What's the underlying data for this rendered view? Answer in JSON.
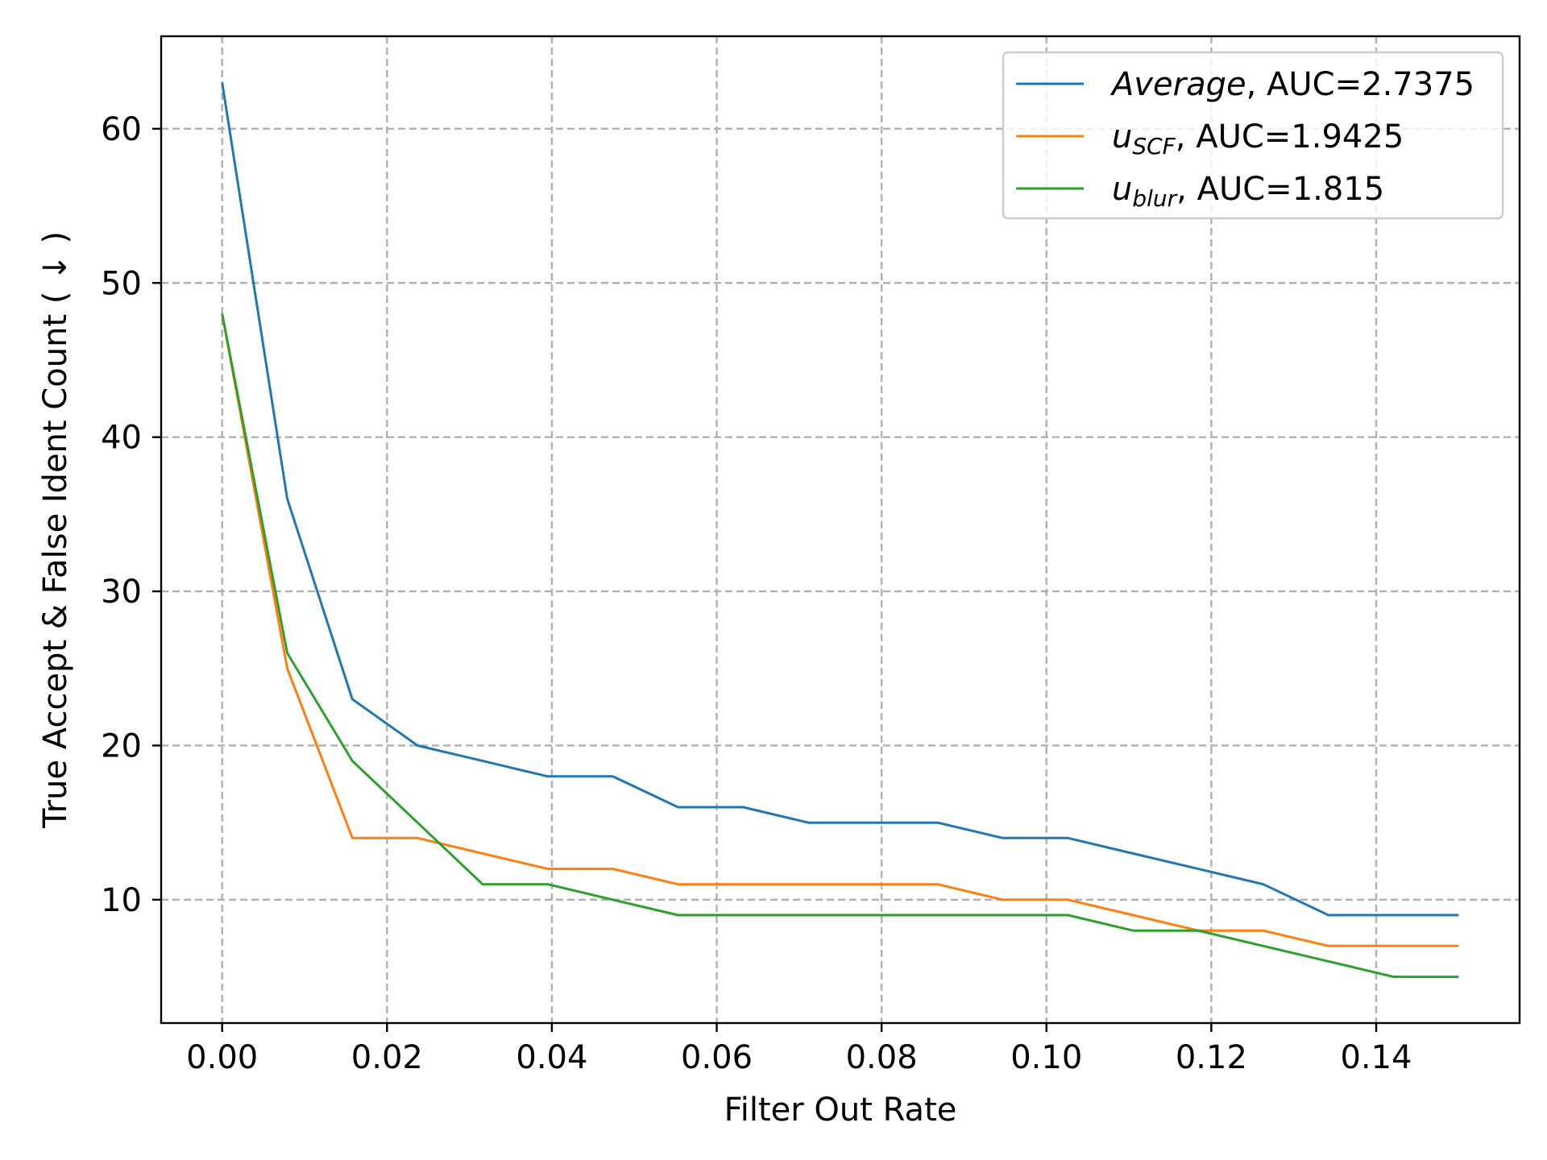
{
  "chart_data": {
    "type": "line",
    "title": "",
    "xlabel": "Filter Out Rate",
    "ylabel": "True Accept & False Ident Count ( ↓ )",
    "xlim": [
      -0.0074,
      0.1574
    ],
    "ylim": [
      2.0,
      66.0
    ],
    "grid": true,
    "legend_position": "top-right",
    "x_ticks": [
      {
        "value": 0.0,
        "label": "0.00"
      },
      {
        "value": 0.02,
        "label": "0.02"
      },
      {
        "value": 0.04,
        "label": "0.04"
      },
      {
        "value": 0.06,
        "label": "0.06"
      },
      {
        "value": 0.08,
        "label": "0.08"
      },
      {
        "value": 0.1,
        "label": "0.10"
      },
      {
        "value": 0.12,
        "label": "0.12"
      },
      {
        "value": 0.14,
        "label": "0.14"
      }
    ],
    "y_ticks": [
      {
        "value": 10,
        "label": "10"
      },
      {
        "value": 20,
        "label": "20"
      },
      {
        "value": 30,
        "label": "30"
      },
      {
        "value": 40,
        "label": "40"
      },
      {
        "value": 50,
        "label": "50"
      },
      {
        "value": 60,
        "label": "60"
      }
    ],
    "x": [
      0.0,
      0.0079,
      0.0158,
      0.0237,
      0.0316,
      0.0395,
      0.0474,
      0.0553,
      0.0632,
      0.0711,
      0.0789,
      0.0868,
      0.0947,
      0.1026,
      0.1105,
      0.1184,
      0.1263,
      0.1342,
      0.1421,
      0.15
    ],
    "series": [
      {
        "name": "Average",
        "legend_suffix": ", AUC=2.7375",
        "color": "#1f77b4",
        "values": [
          63,
          36,
          23,
          20,
          19,
          18,
          18,
          16,
          16,
          15,
          15,
          15,
          14,
          14,
          13,
          12,
          11,
          9,
          9,
          9
        ]
      },
      {
        "name": "u",
        "name_sub": "SCF",
        "legend_suffix": ", AUC=1.9425",
        "color": "#ff7f0e",
        "values": [
          48,
          25,
          14,
          14,
          13,
          12,
          12,
          11,
          11,
          11,
          11,
          11,
          10,
          10,
          9,
          8,
          8,
          7,
          7,
          7
        ]
      },
      {
        "name": "u",
        "name_sub": "blur",
        "legend_suffix": ", AUC=1.815",
        "color": "#2ca02c",
        "values": [
          48,
          26,
          19,
          15,
          11,
          11,
          10,
          9,
          9,
          9,
          9,
          9,
          9,
          9,
          8,
          8,
          7,
          6,
          5,
          5
        ]
      }
    ]
  }
}
